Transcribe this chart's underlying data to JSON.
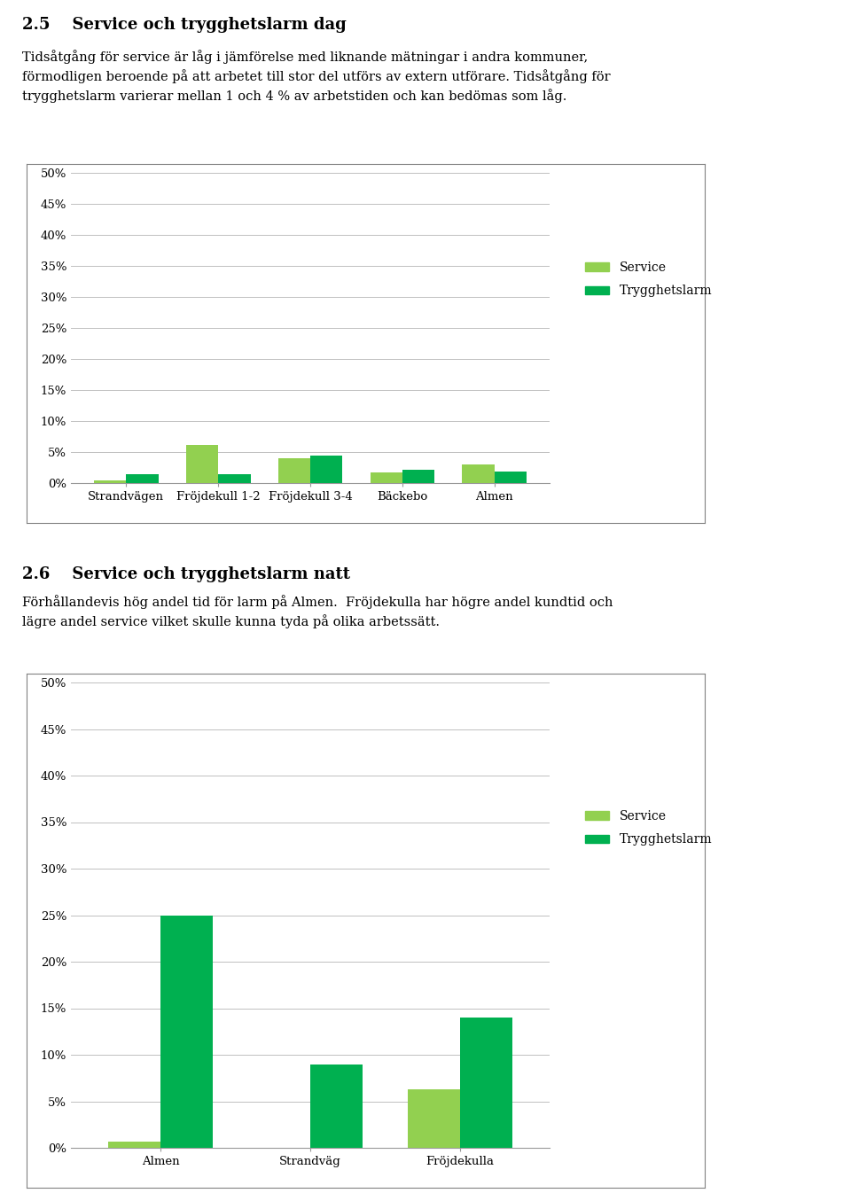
{
  "title1_num": "2.5",
  "title1_text": "Service och trygghetslarm dag",
  "text1_line1": "Tidsåtgång för service är låg i jämförelse med liknande mätningar i andra kommuner,",
  "text1_line2": "förmodligen beroende på att arbetet till stor del utförs av extern utförare. Tidsåtgång för",
  "text1_line3": "trygghetslarm varierar mellan 1 och 4 % av arbetstiden och kan bedömas som låg.",
  "chart1": {
    "categories": [
      "Strandvägen",
      "Fröjdekull 1-2",
      "Fröjdekull 3-4",
      "Bäckebo",
      "Almen"
    ],
    "service": [
      0.5,
      6.2,
      4.0,
      1.7,
      3.0
    ],
    "trygghetslarm": [
      1.5,
      1.5,
      4.4,
      2.1,
      1.8
    ],
    "yticks": [
      0.0,
      0.05,
      0.1,
      0.15,
      0.2,
      0.25,
      0.3,
      0.35,
      0.4,
      0.45,
      0.5
    ],
    "ytick_labels": [
      "0%",
      "5%",
      "10%",
      "15%",
      "20%",
      "25%",
      "30%",
      "35%",
      "40%",
      "45%",
      "50%"
    ]
  },
  "title2_num": "2.6",
  "title2_text": "Service och trygghetslarm natt",
  "text2_line1": "Förhållandevis hög andel tid för larm på Almen.  Fröjdekulla har högre andel kundtid och",
  "text2_line2": "lägre andel service vilket skulle kunna tyda på olika arbetssätt.",
  "chart2": {
    "categories": [
      "Almen",
      "Strandväg",
      "Fröjdekulla"
    ],
    "service": [
      0.7,
      0.0,
      6.3
    ],
    "trygghetslarm": [
      25.0,
      9.0,
      14.0
    ],
    "yticks": [
      0.0,
      0.05,
      0.1,
      0.15,
      0.2,
      0.25,
      0.3,
      0.35,
      0.4,
      0.45,
      0.5
    ],
    "ytick_labels": [
      "0%",
      "5%",
      "10%",
      "15%",
      "20%",
      "25%",
      "30%",
      "35%",
      "40%",
      "45%",
      "50%"
    ]
  },
  "color_service": "#92D050",
  "color_trygghetslarm": "#00B050",
  "legend_service": "Service",
  "legend_trygghetslarm": "Trygghetslarm",
  "grid_color": "#C0C0C0",
  "bg_color": "#FFFFFF",
  "chart_border_color": "#808080",
  "bar_width": 0.35
}
